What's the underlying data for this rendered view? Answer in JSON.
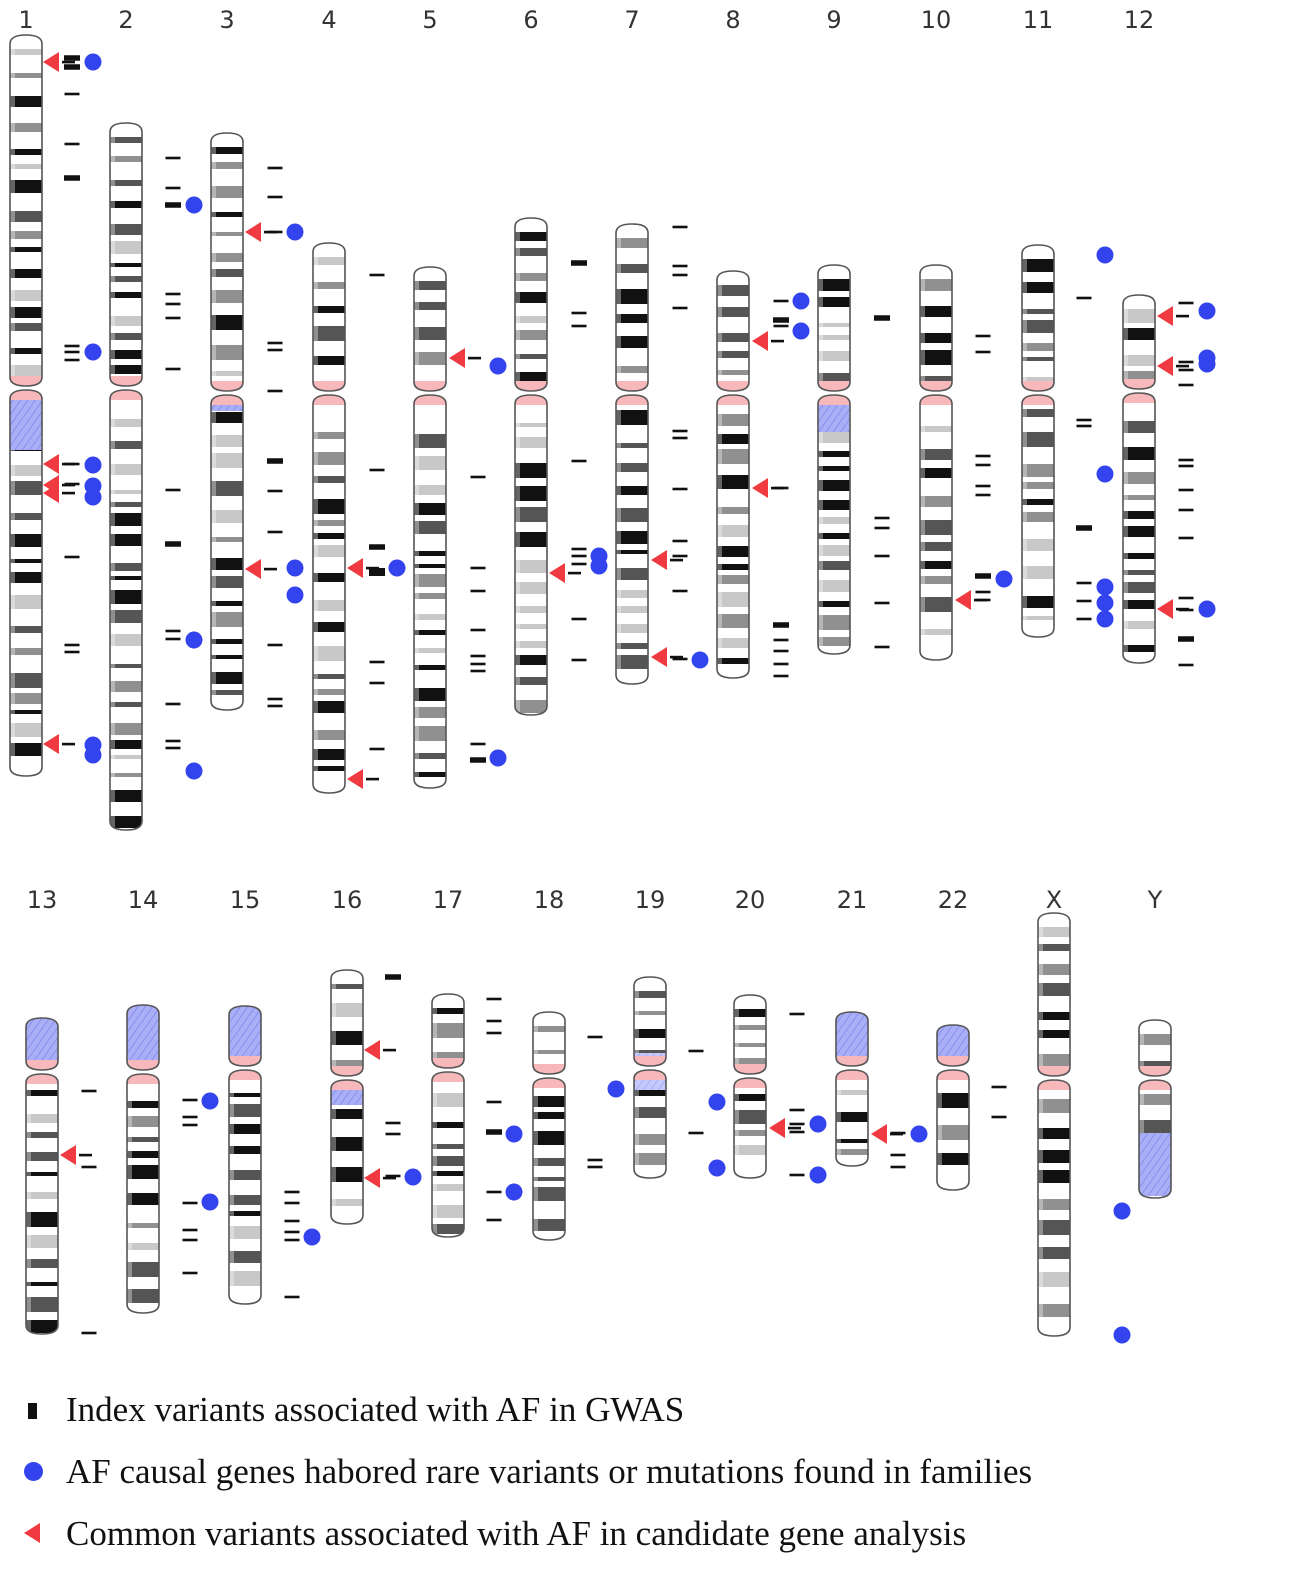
{
  "colors": {
    "index_variant": "#111111",
    "family_gene": "#3344ee",
    "candidate_gene": "#ee3a40",
    "centromere": "#f7b8bb",
    "heterochromatin": "#9aa0f4",
    "chromosome_outline": "#555555"
  },
  "chromosome_labels": [
    "1",
    "2",
    "3",
    "4",
    "5",
    "6",
    "7",
    "8",
    "9",
    "10",
    "11",
    "12",
    "13",
    "14",
    "15",
    "16",
    "17",
    "18",
    "19",
    "20",
    "21",
    "22",
    "X",
    "Y"
  ],
  "legend": {
    "index": "Index variants associated with AF in GWAS",
    "family": "AF causal genes habored rare variants or mutations found in families",
    "candidate": "Common variants associated with AF in candidate gene analysis"
  }
}
